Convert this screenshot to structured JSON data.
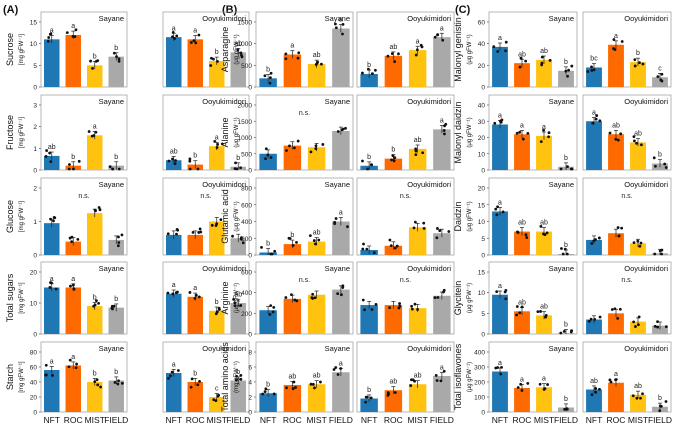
{
  "figure": {
    "colors": {
      "NFT": "#1f77b4",
      "ROC": "#ff6a00",
      "MIST": "#ffc20e",
      "FIELD": "#a9a9a9"
    },
    "treatments": [
      "NFT",
      "ROC",
      "MIST",
      "FIELD"
    ],
    "varieties": [
      "Sayane",
      "Ooyukimidori"
    ],
    "unit_label": "[mg gFW⁻¹]",
    "unit_label_ug": "(μg gFW⁻¹)"
  },
  "panels": [
    {
      "label": "(A)"
    },
    {
      "label": "(B)"
    },
    {
      "label": "(C)"
    }
  ],
  "chart_data": [
    {
      "type": "bar",
      "panel": "(A)",
      "title": "Sucrose",
      "ylabel_main": "Sucrose",
      "ylabel_unit": "[mg gFW⁻¹]",
      "categories": [
        "NFT",
        "ROC",
        "MIST",
        "FIELD"
      ],
      "ylim": [
        0,
        15
      ],
      "yticks": [
        "0",
        "5",
        "10",
        "15"
      ],
      "series": [
        {
          "name": "Sayane",
          "values": [
            11.0,
            12.0,
            5.0,
            7.0
          ],
          "letters": [
            "a",
            "a",
            "b",
            "b"
          ]
        },
        {
          "name": "Ooyukimidori",
          "values": [
            11.5,
            11.0,
            6.0,
            8.0
          ],
          "letters": [
            "a",
            "a",
            "b",
            "ab"
          ]
        }
      ]
    },
    {
      "type": "bar",
      "panel": "(A)",
      "title": "Fructose",
      "ylabel_main": "Fructose",
      "ylabel_unit": "[mg gFW⁻¹]",
      "categories": [
        "NFT",
        "ROC",
        "MIST",
        "FIELD"
      ],
      "ylim": [
        0,
        3
      ],
      "yticks": [
        "0",
        "1",
        "2",
        "3"
      ],
      "series": [
        {
          "name": "Sayane",
          "values": [
            0.65,
            0.2,
            1.6,
            0.2
          ],
          "letters": [
            "ab",
            "b",
            "a",
            "b"
          ]
        },
        {
          "name": "Ooyukimidori",
          "values": [
            0.45,
            0.25,
            1.1,
            0.15
          ],
          "letters": [
            "ab",
            "b",
            "a",
            "b"
          ]
        }
      ]
    },
    {
      "type": "bar",
      "panel": "(A)",
      "title": "Glucose",
      "ylabel_main": "Glucose",
      "ylabel_unit": "[mg gFW⁻¹]",
      "categories": [
        "NFT",
        "ROC",
        "MIST",
        "FIELD"
      ],
      "ylim": [
        0,
        2
      ],
      "yticks": [
        "0",
        "1",
        "2"
      ],
      "series": [
        {
          "name": "Sayane",
          "values": [
            0.95,
            0.4,
            1.25,
            0.45
          ],
          "letters": [],
          "note": "n.s."
        },
        {
          "name": "Ooyukimidori",
          "values": [
            0.6,
            0.6,
            1.0,
            0.5
          ],
          "letters": [],
          "note": "n.s."
        }
      ]
    },
    {
      "type": "bar",
      "panel": "(A)",
      "title": "Total sugars",
      "ylabel_main": "Total sugars",
      "ylabel_unit": "[mg gFW⁻¹]",
      "categories": [
        "NFT",
        "ROC",
        "MIST",
        "FIELD"
      ],
      "ylim": [
        0,
        20
      ],
      "yticks": [
        "0",
        "10",
        "20"
      ],
      "series": [
        {
          "name": "Sayane",
          "values": [
            15.0,
            15.0,
            9.0,
            8.5
          ],
          "letters": [
            "a",
            "a",
            "b",
            "b"
          ]
        },
        {
          "name": "Ooyukimidori",
          "values": [
            13.0,
            12.0,
            7.5,
            10.0
          ],
          "letters": [
            "a",
            "a",
            "b",
            "ab"
          ]
        }
      ]
    },
    {
      "type": "bar",
      "panel": "(A)",
      "title": "Starch",
      "ylabel_main": "Starch",
      "ylabel_unit": "[mg gFW⁻¹]",
      "categories": [
        "NFT",
        "ROC",
        "MIST",
        "FIELD"
      ],
      "ylim": [
        0,
        80
      ],
      "yticks": [
        "0",
        "20",
        "40",
        "60",
        "80"
      ],
      "series": [
        {
          "name": "Sayane",
          "values": [
            56,
            62,
            40,
            42
          ],
          "letters": [
            "a",
            "a",
            "b",
            "b"
          ]
        },
        {
          "name": "Ooyukimidori",
          "values": [
            52,
            40,
            20,
            42
          ],
          "letters": [
            "a",
            "b",
            "c",
            "b"
          ]
        }
      ]
    },
    {
      "type": "bar",
      "panel": "(B)",
      "title": "Asparagine",
      "ylabel_main": "Asparagine",
      "ylabel_unit": "(μg gFW⁻¹)",
      "categories": [
        "NFT",
        "ROC",
        "MIST",
        "FIELD"
      ],
      "ylim": [
        0,
        1500
      ],
      "yticks": [
        "0",
        "500",
        "1000",
        "1500"
      ],
      "series": [
        {
          "name": "Sayane",
          "values": [
            200,
            750,
            530,
            1350
          ],
          "letters": [
            "b",
            "a",
            "ab",
            "a"
          ]
        },
        {
          "name": "Ooyukimidori",
          "values": [
            300,
            720,
            850,
            1150
          ],
          "letters": [
            "b",
            "ab",
            "a",
            "a"
          ]
        }
      ]
    },
    {
      "type": "bar",
      "panel": "(B)",
      "title": "Alanine",
      "ylabel_main": "Alanine",
      "ylabel_unit": "(μg gFW⁻¹)",
      "categories": [
        "NFT",
        "ROC",
        "MIST",
        "FIELD"
      ],
      "ylim": [
        0,
        2000
      ],
      "yticks": [
        "0",
        "500",
        "1000",
        "1500",
        "2000"
      ],
      "series": [
        {
          "name": "Sayane",
          "values": [
            500,
            750,
            700,
            1200
          ],
          "letters": [],
          "note": "n.s."
        },
        {
          "name": "Ooyukimidori",
          "values": [
            130,
            350,
            650,
            1250
          ],
          "letters": [
            "b",
            "b",
            "ab",
            "a"
          ]
        }
      ]
    },
    {
      "type": "bar",
      "panel": "(B)",
      "title": "Glutamic acid",
      "ylabel_main": "Glutamic acid",
      "ylabel_unit": "(μg gFW⁻¹)",
      "categories": [
        "NFT",
        "ROC",
        "MIST",
        "FIELD"
      ],
      "ylim": [
        0,
        800
      ],
      "yticks": [
        "0",
        "200",
        "400",
        "600",
        "800"
      ],
      "series": [
        {
          "name": "Sayane",
          "values": [
            30,
            130,
            160,
            400
          ],
          "letters": [
            "b",
            "b",
            "ab",
            "a"
          ]
        },
        {
          "name": "Ooyukimidori",
          "values": [
            60,
            110,
            330,
            260
          ],
          "letters": [],
          "note": "n.s."
        }
      ]
    },
    {
      "type": "bar",
      "panel": "(B)",
      "title": "Arginine",
      "ylabel_main": "Arginine",
      "ylabel_unit": "(μg gFW⁻¹)",
      "categories": [
        "NFT",
        "ROC",
        "MIST",
        "FIELD"
      ],
      "ylim": [
        0,
        600
      ],
      "yticks": [
        "0",
        "200",
        "400",
        "600"
      ],
      "series": [
        {
          "name": "Sayane",
          "values": [
            230,
            340,
            380,
            430
          ],
          "letters": [],
          "note": "n.s."
        },
        {
          "name": "Ooyukimidori",
          "values": [
            280,
            280,
            250,
            370
          ],
          "letters": [],
          "note": "n.s."
        }
      ]
    },
    {
      "type": "bar",
      "panel": "(B)",
      "title": "Total amino acids",
      "ylabel_main": "Total amino acids",
      "ylabel_unit": "(mg gFW⁻¹)",
      "categories": [
        "NFT",
        "ROC",
        "MIST",
        "FIELD"
      ],
      "ylim": [
        0,
        8
      ],
      "yticks": [
        "0",
        "2",
        "4",
        "6",
        "8"
      ],
      "series": [
        {
          "name": "Sayane",
          "values": [
            2.5,
            3.6,
            3.7,
            5.3
          ],
          "letters": [
            "b",
            "ab",
            "ab",
            "a"
          ]
        },
        {
          "name": "Ooyukimidori",
          "values": [
            1.8,
            2.9,
            3.7,
            4.8
          ],
          "letters": [
            "b",
            "ab",
            "ab",
            "a"
          ]
        }
      ]
    },
    {
      "type": "bar",
      "panel": "(C)",
      "title": "Malonyl genistin",
      "ylabel_main": "Malonyl genistin",
      "ylabel_unit": "(μg gFW⁻¹)",
      "categories": [
        "NFT",
        "ROC",
        "MIST",
        "FIELD"
      ],
      "ylim": [
        0,
        60
      ],
      "yticks": [
        "0",
        "20",
        "40",
        "60"
      ],
      "series": [
        {
          "name": "Sayane",
          "values": [
            37,
            22,
            25,
            15
          ],
          "letters": [
            "a",
            "ab",
            "ab",
            "b"
          ]
        },
        {
          "name": "Ooyukimidori",
          "values": [
            18,
            39,
            23,
            9
          ],
          "letters": [
            "bc",
            "a",
            "b",
            "c"
          ]
        }
      ]
    },
    {
      "type": "bar",
      "panel": "(C)",
      "title": "Malonyl daidzin",
      "ylabel_main": "Malonyl daidzin",
      "ylabel_unit": "(μg gFW⁻¹)",
      "categories": [
        "NFT",
        "ROC",
        "MIST",
        "FIELD"
      ],
      "ylim": [
        0,
        40
      ],
      "yticks": [
        "0",
        "10",
        "20",
        "30",
        "40"
      ],
      "series": [
        {
          "name": "Sayane",
          "values": [
            28,
            22,
            21,
            2
          ],
          "letters": [
            "a",
            "a",
            "a",
            "b"
          ]
        },
        {
          "name": "Ooyukimidori",
          "values": [
            30,
            22,
            17,
            4
          ],
          "letters": [
            "a",
            "ab",
            "ab",
            "b"
          ]
        }
      ]
    },
    {
      "type": "bar",
      "panel": "(C)",
      "title": "Daidzin",
      "ylabel_main": "Daidzin",
      "ylabel_unit": "(μg gFW⁻¹)",
      "categories": [
        "NFT",
        "ROC",
        "MIST",
        "FIELD"
      ],
      "ylim": [
        0,
        20
      ],
      "yticks": [
        "0",
        "5",
        "10",
        "15",
        "20"
      ],
      "series": [
        {
          "name": "Sayane",
          "values": [
            13,
            7,
            7,
            0.3
          ],
          "letters": [
            "a",
            "ab",
            "ab",
            "b"
          ]
        },
        {
          "name": "Ooyukimidori",
          "values": [
            4.5,
            6.5,
            3.5,
            0.5
          ],
          "letters": [],
          "note": "n.s."
        }
      ]
    },
    {
      "type": "bar",
      "panel": "(C)",
      "title": "Glycitein",
      "ylabel_main": "Glycitein",
      "ylabel_unit": "(μg gFW⁻¹)",
      "categories": [
        "NFT",
        "ROC",
        "MIST",
        "FIELD"
      ],
      "ylim": [
        0,
        15
      ],
      "yticks": [
        "0",
        "5",
        "10",
        "15"
      ],
      "series": [
        {
          "name": "Sayane",
          "values": [
            9.5,
            5.5,
            4.5,
            0.2
          ],
          "letters": [
            "a",
            "ab",
            "ab",
            "b"
          ]
        },
        {
          "name": "Ooyukimidori",
          "values": [
            3.5,
            5.0,
            3.0,
            2.0
          ],
          "letters": [],
          "note": "n.s."
        }
      ]
    },
    {
      "type": "bar",
      "panel": "(C)",
      "title": "Total isoflavones",
      "ylabel_main": "Total isoflavones",
      "ylabel_unit": "(μg gFW⁻¹)",
      "categories": [
        "NFT",
        "ROC",
        "MIST",
        "FIELD"
      ],
      "ylim": [
        0,
        400
      ],
      "yticks": [
        "0",
        "100",
        "200",
        "300",
        "400"
      ],
      "series": [
        {
          "name": "Sayane",
          "values": [
            270,
            160,
            165,
            30
          ],
          "letters": [
            "a",
            "a",
            "a",
            "b"
          ]
        },
        {
          "name": "Ooyukimidori",
          "values": [
            150,
            195,
            115,
            35
          ],
          "letters": [
            "ab",
            "a",
            "ab",
            "b"
          ]
        }
      ]
    }
  ]
}
